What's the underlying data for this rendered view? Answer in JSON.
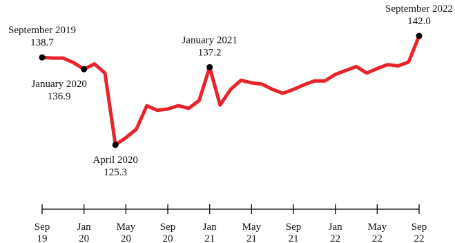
{
  "chart_data": {
    "type": "line",
    "title": "",
    "xlabel": "",
    "ylabel": "",
    "x": [
      "2019-09",
      "2019-10",
      "2019-11",
      "2019-12",
      "2020-01",
      "2020-02",
      "2020-03",
      "2020-04",
      "2020-05",
      "2020-06",
      "2020-07",
      "2020-08",
      "2020-09",
      "2020-10",
      "2020-11",
      "2020-12",
      "2021-01",
      "2021-02",
      "2021-03",
      "2021-04",
      "2021-05",
      "2021-06",
      "2021-07",
      "2021-08",
      "2021-09",
      "2021-10",
      "2021-11",
      "2021-12",
      "2022-01",
      "2022-02",
      "2022-03",
      "2022-04",
      "2022-05",
      "2022-06",
      "2022-07",
      "2022-08",
      "2022-09"
    ],
    "series": [
      {
        "name": "",
        "color": "#e8232a",
        "values": [
          138.7,
          138.6,
          138.6,
          137.9,
          136.9,
          137.7,
          136.3,
          125.3,
          126.4,
          127.7,
          131.3,
          130.6,
          130.8,
          131.3,
          130.9,
          132.1,
          137.2,
          131.4,
          133.8,
          135.2,
          134.8,
          134.6,
          133.8,
          133.2,
          133.8,
          134.5,
          135.1,
          135.1,
          136.1,
          136.7,
          137.3,
          136.3,
          137.0,
          137.6,
          137.4,
          138.0,
          142.0
        ]
      }
    ],
    "x_ticks": [
      {
        "date": "2019-09",
        "month": "Sep",
        "year": "19"
      },
      {
        "date": "2020-01",
        "month": "Jan",
        "year": "20"
      },
      {
        "date": "2020-05",
        "month": "May",
        "year": "20"
      },
      {
        "date": "2020-09",
        "month": "Sep",
        "year": "20"
      },
      {
        "date": "2021-01",
        "month": "Jan",
        "year": "21"
      },
      {
        "date": "2021-05",
        "month": "May",
        "year": "21"
      },
      {
        "date": "2021-09",
        "month": "Sep",
        "year": "21"
      },
      {
        "date": "2022-01",
        "month": "Jan",
        "year": "22"
      },
      {
        "date": "2022-05",
        "month": "May",
        "year": "22"
      },
      {
        "date": "2022-09",
        "month": "Sep",
        "year": "22"
      }
    ],
    "annotations": [
      {
        "date": "2019-09",
        "label": "September 2019",
        "value": "138.7",
        "position": "above"
      },
      {
        "date": "2020-01",
        "label": "January 2020",
        "value": "136.9",
        "position": "below"
      },
      {
        "date": "2020-04",
        "label": "April 2020",
        "value": "125.3",
        "position": "below"
      },
      {
        "date": "2021-01",
        "label": "January 2021",
        "value": "137.2",
        "position": "above"
      },
      {
        "date": "2022-09",
        "label": "September 2022",
        "value": "142.0",
        "position": "above"
      }
    ],
    "grid": false,
    "legend": "none",
    "y_axis_visible": false
  }
}
